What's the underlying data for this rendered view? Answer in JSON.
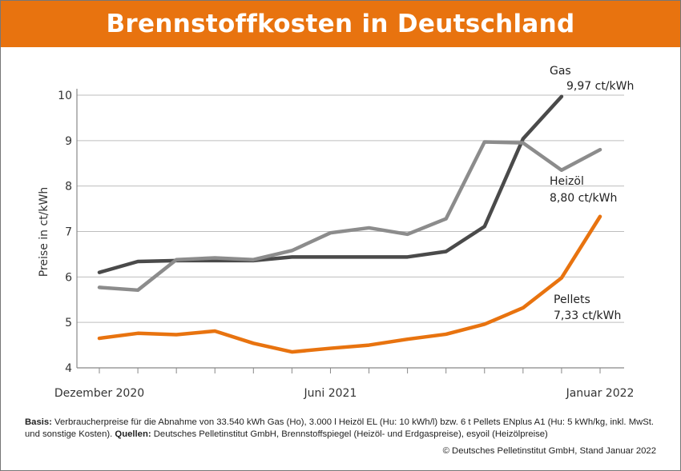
{
  "title": "Brennstoffkosten in Deutschland",
  "chart_data": {
    "type": "line",
    "title": "Brennstoffkosten in Deutschland",
    "ylabel": "Preise in ct/kWh",
    "xlabel": "",
    "ylim": [
      4,
      10
    ],
    "yticks": [
      "4",
      "5",
      "6",
      "7",
      "8",
      "9",
      "10"
    ],
    "x": [
      "2020-12",
      "2021-01",
      "2021-02",
      "2021-03",
      "2021-04",
      "2021-05",
      "2021-06",
      "2021-07",
      "2021-08",
      "2021-09",
      "2021-10",
      "2021-11",
      "2021-12",
      "2022-01"
    ],
    "xtick_labels": [
      {
        "index": 0,
        "label": "Dezember 2020"
      },
      {
        "index": 6,
        "label": "Juni 2021"
      },
      {
        "index": 13,
        "label": "Januar 2022"
      }
    ],
    "grid": "horizontal",
    "series": [
      {
        "name": "Gas",
        "end_label": "9,97 ct/kWh",
        "color": "#4a4a4a",
        "values": [
          6.1,
          6.34,
          6.36,
          6.36,
          6.36,
          6.44,
          6.44,
          6.44,
          6.44,
          6.56,
          7.11,
          9.04,
          9.97,
          null
        ]
      },
      {
        "name": "Heizöl",
        "end_label": "8,80 ct/kWh",
        "color": "#8c8c8c",
        "values": [
          5.77,
          5.71,
          6.38,
          6.42,
          6.38,
          6.58,
          6.97,
          7.08,
          6.94,
          7.28,
          8.97,
          8.95,
          8.35,
          8.8
        ]
      },
      {
        "name": "Pellets",
        "end_label": "7,33 ct/kWh",
        "color": "#e8730f",
        "values": [
          4.65,
          4.76,
          4.73,
          4.81,
          4.54,
          4.35,
          4.43,
          4.5,
          4.63,
          4.74,
          4.96,
          5.32,
          5.98,
          7.33
        ]
      }
    ]
  },
  "footnote": {
    "basis_label": "Basis:",
    "basis_text": " Verbraucherpreise für die Abnahme von 33.540 kWh Gas (Ho), 3.000 l Heizöl EL (Hu: 10 kWh/l) bzw. 6 t Pellets ENplus A1 (Hu: 5 kWh/kg, inkl. MwSt. und sonstige Kosten). ",
    "sources_label": "Quellen:",
    "sources_text": " Deutsches Pelletinstitut GmbH, Brennstoffspiegel (Heizöl- und Erdgaspreise), esyoil (Heizölpreise)"
  },
  "copyright": "© Deutsches Pelletinstitut GmbH, Stand Januar 2022"
}
